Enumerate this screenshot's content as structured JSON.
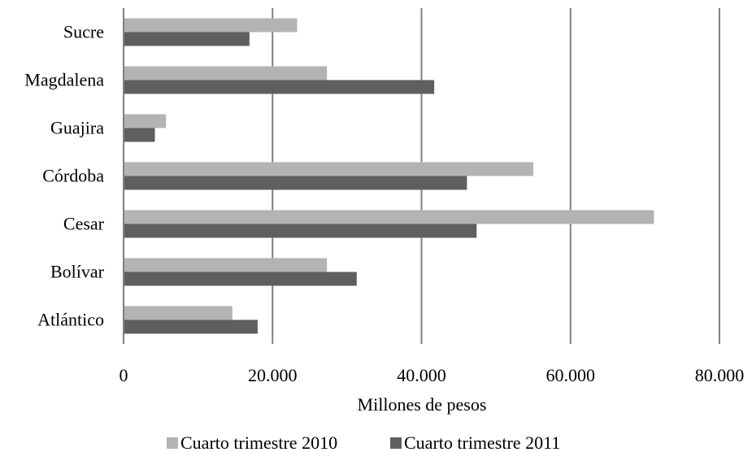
{
  "chart_data": {
    "type": "bar",
    "orientation": "horizontal",
    "title": "",
    "xlabel": "Millones de pesos",
    "ylabel": "",
    "xlim": [
      0,
      80000
    ],
    "xticks": [
      0,
      20000,
      40000,
      60000,
      80000
    ],
    "xtick_labels": [
      "0",
      "20.000",
      "40.000",
      "60.000",
      "80.000"
    ],
    "categories": [
      "Sucre",
      "Magdalena",
      "Guajira",
      "Córdoba",
      "Cesar",
      "Bolívar",
      "Atlántico"
    ],
    "series": [
      {
        "name": "Cuarto trimestre 2010",
        "color": "#b3b3b3",
        "values": [
          23300,
          27300,
          5700,
          55000,
          71200,
          27300,
          14600
        ]
      },
      {
        "name": "Cuarto trimestre 2011",
        "color": "#5f5f5f",
        "values": [
          16900,
          41700,
          4200,
          46100,
          47400,
          31300,
          18000
        ]
      }
    ],
    "grid": "vertical",
    "legend_position": "bottom"
  }
}
